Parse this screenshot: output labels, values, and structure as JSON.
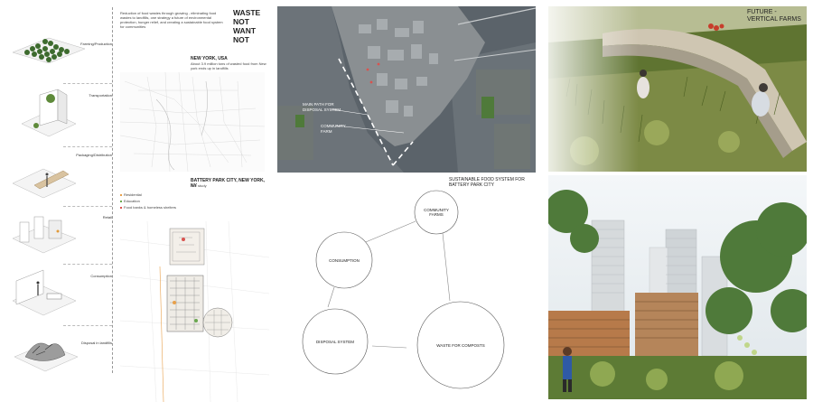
{
  "intro": {
    "text": "Reduction of food wastes through growing - eliminating food wastes to landfills, one strategy a future of environmental protection, hunger relief, and creating a sustainable food system for communities"
  },
  "title": {
    "lines": [
      "WASTE",
      "NOT",
      "WANT",
      "NOT"
    ]
  },
  "stages": [
    {
      "label": "Farming/Production"
    },
    {
      "label": "Transportation"
    },
    {
      "label": "Packaging/Distribution"
    },
    {
      "label": "Retail"
    },
    {
      "label": "Consumption"
    },
    {
      "label": "Disposal in landfills"
    }
  ],
  "nyc_panel": {
    "heading": "NEW YORK, USA",
    "text": "About 3.9 million tons of wasted food from New york ends up in landfills"
  },
  "bpc_panel": {
    "heading": "BATTERY PARK CITY, NEW YORK, NY",
    "subheading": "Site study",
    "legend": [
      "Residential",
      "Education",
      "Food banks & homeless shelters"
    ]
  },
  "aerial": {
    "label_main_path": "MAIN PATH FOR\nDISPOSAL SYSTEM",
    "label_community_farm": "COMMUNITY\nFARM"
  },
  "system": {
    "title": "SUSTAINABLE FOOD SYSTEM FOR\nBATTERY PARK CITY",
    "nodes": {
      "farms": "COMMUNITY\nFARMS",
      "consumption": "CONSUMPTION",
      "disposal": "DISPOSAL SYSTEM",
      "composts": "WASTE FOR COMPOSTS"
    }
  },
  "future": {
    "title": "FUTURE -\nVERTICAL FARMS"
  },
  "colors": {
    "legend_residential": "#e8a04a",
    "legend_education": "#6aa84f",
    "legend_foodbank": "#d9534f"
  }
}
